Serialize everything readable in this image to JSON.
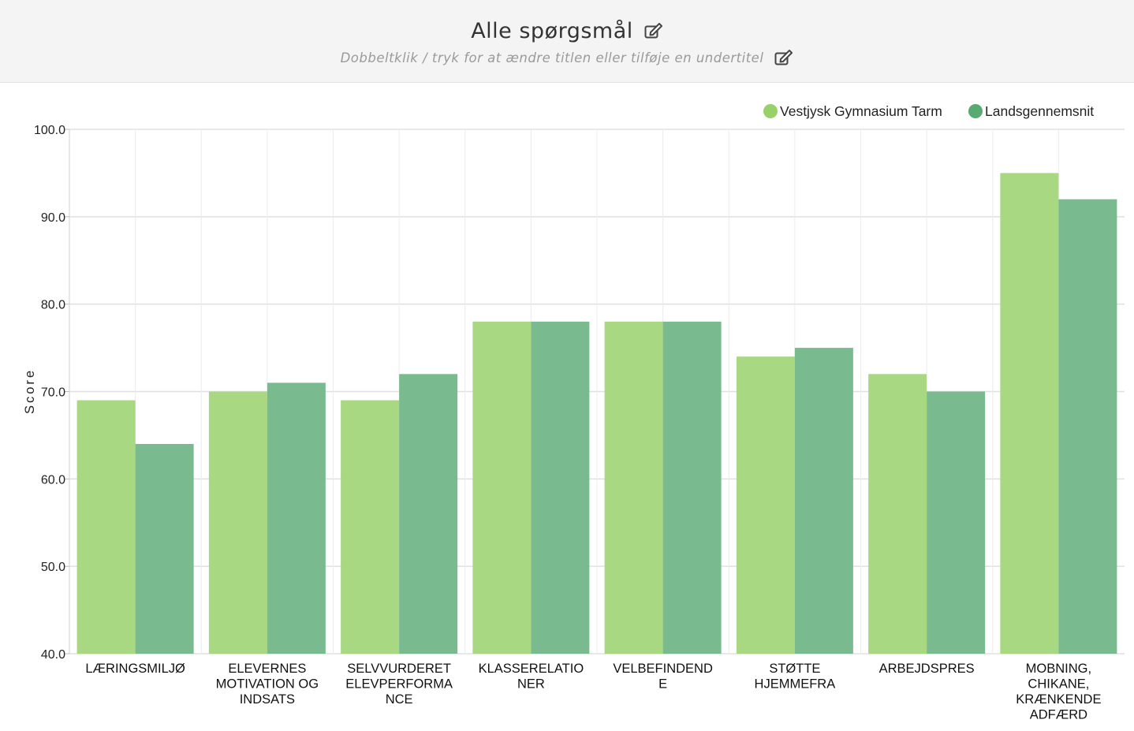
{
  "header": {
    "title": "Alle spørgsmål",
    "subtitle": "Dobbeltklik / tryk for at ændre titlen eller tilføje en undertitel",
    "edit_icon": "edit-icon"
  },
  "colors": {
    "series_1": "#a8d882",
    "series_2": "#79bb8f",
    "legend_1": "#98d16a",
    "legend_2": "#58aa73",
    "grid": "#e0e0e0",
    "header_bg": "#f4f4f4"
  },
  "chart_data": {
    "type": "bar",
    "title": "",
    "xlabel": "",
    "ylabel": "Score",
    "ylim": [
      40,
      100
    ],
    "yticks": [
      "40.0",
      "50.0",
      "60.0",
      "70.0",
      "80.0",
      "90.0",
      "100.0"
    ],
    "grid": true,
    "legend_position": "top-right",
    "categories": [
      [
        "LÆRINGSMILJØ"
      ],
      [
        "ELEVERNES",
        "MOTIVATION OG",
        "INDSATS"
      ],
      [
        "SELVVURDERET",
        "ELEVPERFORMA",
        "NCE"
      ],
      [
        "KLASSERELATIO",
        "NER"
      ],
      [
        "VELBEFINDEND",
        "E"
      ],
      [
        "STØTTE",
        "HJEMMEFRA"
      ],
      [
        "ARBEJDSPRES"
      ],
      [
        "MOBNING,",
        "CHIKANE,",
        "KRÆNKENDE",
        "ADFÆRD"
      ]
    ],
    "series": [
      {
        "name": "Vestjysk Gymnasium Tarm",
        "values": [
          69,
          70,
          69,
          78,
          78,
          74,
          72,
          95
        ]
      },
      {
        "name": "Landsgennemsnit",
        "values": [
          64,
          71,
          72,
          78,
          78,
          75,
          70,
          92
        ]
      }
    ]
  }
}
